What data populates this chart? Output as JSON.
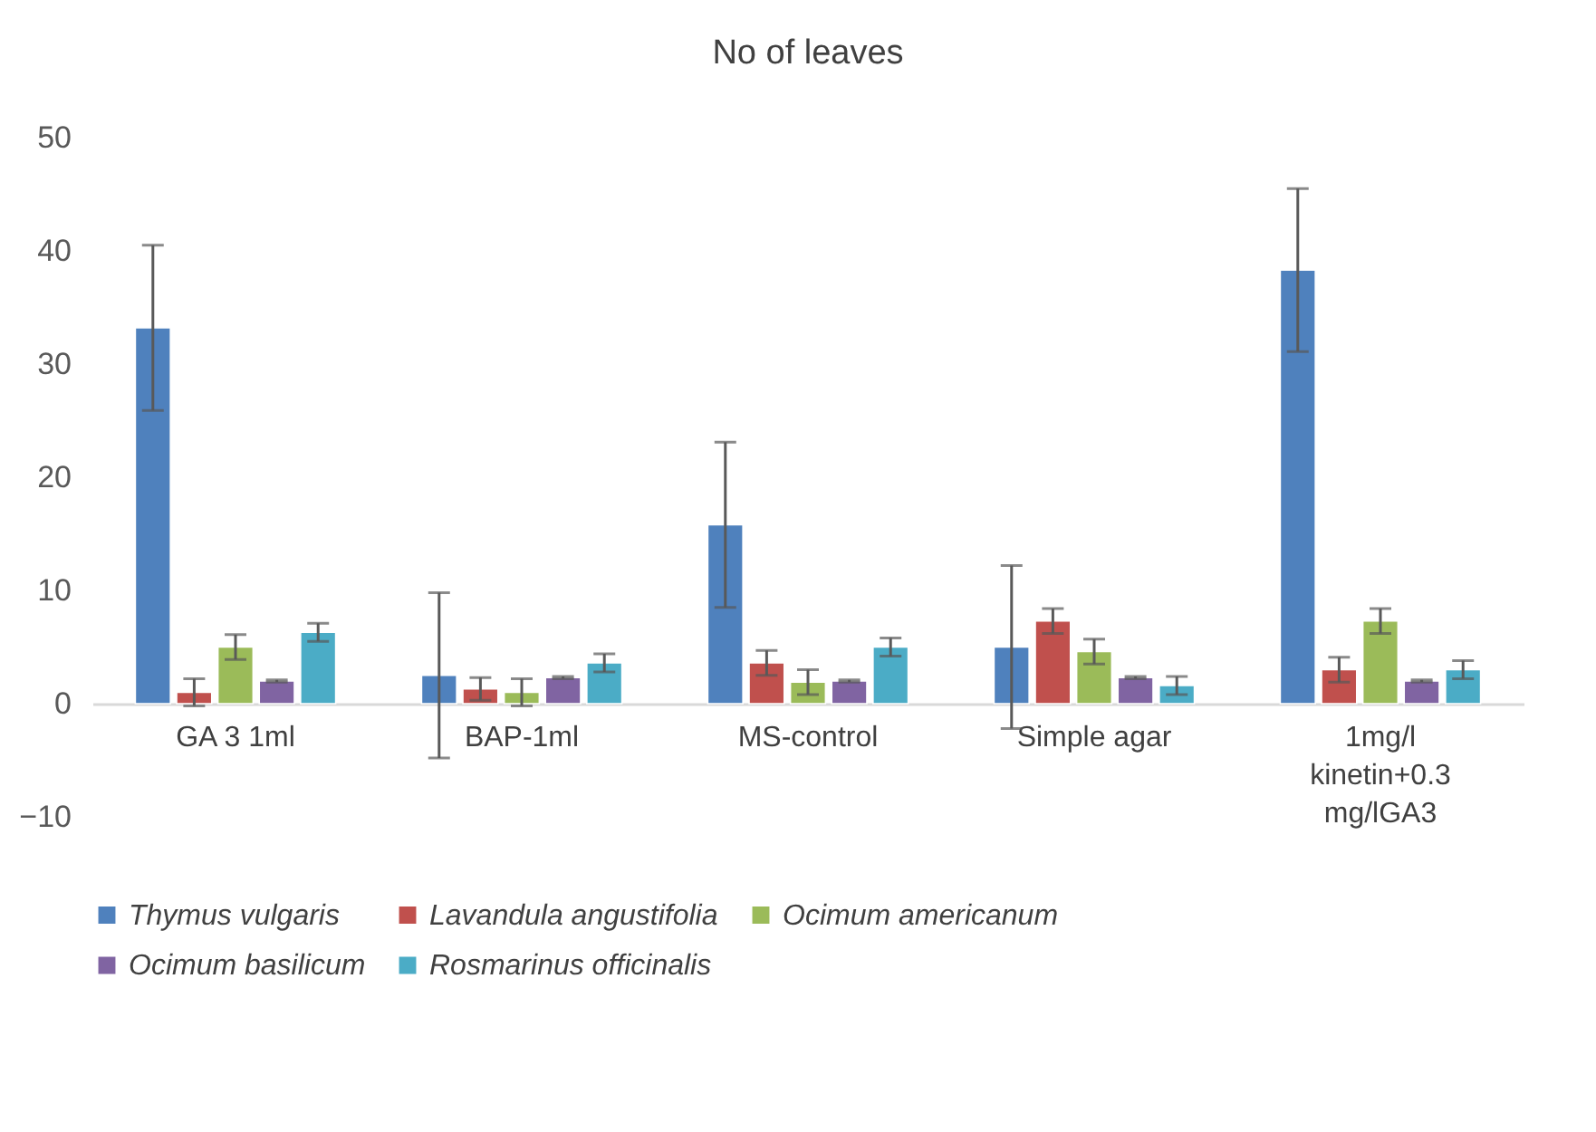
{
  "chart_data": {
    "type": "bar",
    "title": "No of leaves",
    "categories": [
      "GA 3 1ml",
      "BAP-1ml",
      "MS-control",
      "Simple agar",
      "1mg/l kinetin+0.3 mg/lGA3"
    ],
    "series": [
      {
        "name": "Thymus vulgaris",
        "color": "#4f81bd",
        "values": [
          33.2,
          2.5,
          15.8,
          5.0,
          38.3
        ],
        "errors": [
          7.3,
          7.3,
          7.3,
          7.2,
          7.2
        ]
      },
      {
        "name": "Lavandula angustifolia",
        "color": "#c0504d",
        "values": [
          1.0,
          1.3,
          3.6,
          7.3,
          3.0
        ],
        "errors": [
          1.2,
          1.0,
          1.1,
          1.1,
          1.1
        ]
      },
      {
        "name": "Ocimum americanum",
        "color": "#9bbb59",
        "values": [
          5.0,
          1.0,
          1.9,
          4.6,
          7.3
        ],
        "errors": [
          1.1,
          1.2,
          1.1,
          1.1,
          1.1
        ]
      },
      {
        "name": "Ocimum basilicum",
        "color": "#8064a2",
        "values": [
          2.0,
          2.3,
          2.0,
          2.3,
          2.0
        ],
        "errors": [
          0.1,
          0.1,
          0.1,
          0.1,
          0.1
        ]
      },
      {
        "name": "Rosmarinus officinalis",
        "color": "#4bacc6",
        "values": [
          6.3,
          3.6,
          5.0,
          1.6,
          3.0
        ],
        "errors": [
          0.8,
          0.8,
          0.8,
          0.8,
          0.8
        ]
      }
    ],
    "ylim": [
      -10,
      50
    ],
    "yticks": [
      -10,
      0,
      10,
      20,
      30,
      40,
      50
    ],
    "grid": false,
    "legend": "bottom"
  }
}
